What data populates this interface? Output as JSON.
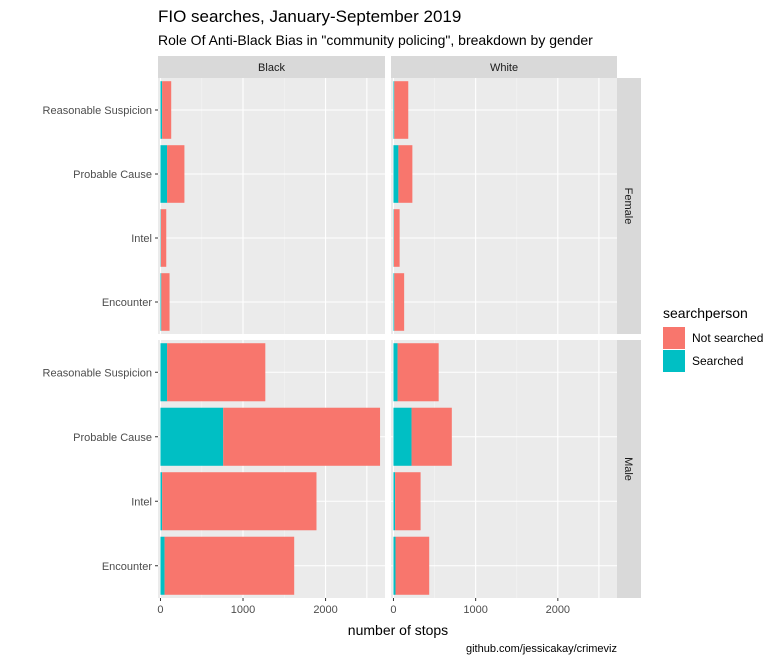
{
  "chart_data": {
    "type": "bar",
    "orientation": "horizontal",
    "stacked": true,
    "title": "FIO searches, January-September 2019",
    "subtitle": "Role Of Anti-Black Bias in \"community policing\", breakdown by gender",
    "xlabel": "number of stops",
    "ylabel": "",
    "caption": "github.com/jessicakay/crimeviz",
    "xlim": [
      -30,
      2720
    ],
    "x_ticks": [
      0,
      1000,
      2000
    ],
    "categories": [
      "Reasonable Suspicion",
      "Probable Cause",
      "Intel",
      "Encounter"
    ],
    "facet_columns": [
      "Black",
      "White"
    ],
    "facet_rows": [
      "Female",
      "Male"
    ],
    "legend": {
      "title": "searchperson",
      "position": "right",
      "entries": [
        {
          "name": "Not searched",
          "color": "#F8766D"
        },
        {
          "name": "Searched",
          "color": "#00BFC4"
        }
      ]
    },
    "grid": true,
    "panels": [
      {
        "column": "Black",
        "row": "Female",
        "searched": [
          20,
          80,
          5,
          10
        ],
        "not_searched": [
          110,
          210,
          65,
          100
        ]
      },
      {
        "column": "White",
        "row": "Female",
        "searched": [
          10,
          60,
          5,
          10
        ],
        "not_searched": [
          170,
          170,
          70,
          120
        ]
      },
      {
        "column": "Black",
        "row": "Male",
        "searched": [
          80,
          760,
          20,
          50
        ],
        "not_searched": [
          1190,
          1900,
          1870,
          1570
        ]
      },
      {
        "column": "White",
        "row": "Male",
        "searched": [
          50,
          220,
          20,
          25
        ],
        "not_searched": [
          500,
          490,
          310,
          410
        ]
      }
    ]
  }
}
